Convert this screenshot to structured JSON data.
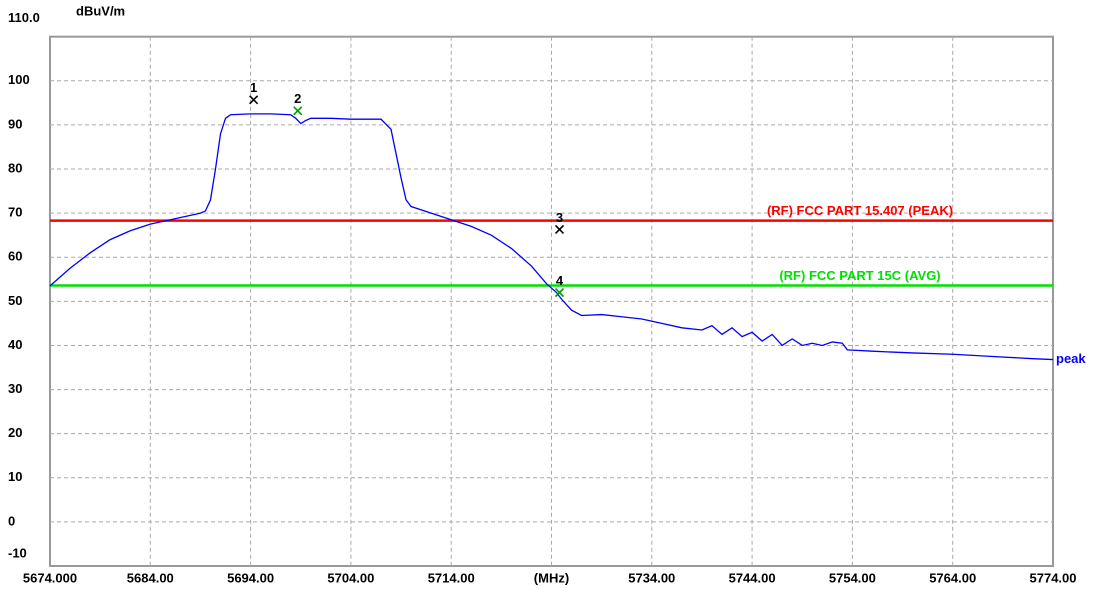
{
  "chart_data": {
    "type": "line",
    "y_label": "dBuV/m",
    "xlim": [
      5674,
      5774
    ],
    "ylim": [
      -10,
      110
    ],
    "xticks": [
      {
        "value": 5674,
        "label": "5674.000"
      },
      {
        "value": 5684,
        "label": "5684.00"
      },
      {
        "value": 5694,
        "label": "5694.00"
      },
      {
        "value": 5704,
        "label": "5704.00"
      },
      {
        "value": 5714,
        "label": "5714.00"
      },
      {
        "value": 5724,
        "label": "(MHz)"
      },
      {
        "value": 5734,
        "label": "5734.00"
      },
      {
        "value": 5744,
        "label": "5744.00"
      },
      {
        "value": 5754,
        "label": "5754.00"
      },
      {
        "value": 5764,
        "label": "5764.00"
      },
      {
        "value": 5774,
        "label": "5774.00"
      }
    ],
    "yticks": [
      -10,
      0,
      10,
      20,
      30,
      40,
      50,
      60,
      70,
      80,
      90,
      100,
      {
        "value": 110,
        "label": "110.0"
      }
    ],
    "grid": true,
    "x": [
      5674,
      5676,
      5678,
      5680,
      5682,
      5684,
      5686,
      5688,
      5689,
      5689.5,
      5690,
      5690.5,
      5691,
      5691.5,
      5692,
      5694,
      5696,
      5698,
      5698.5,
      5699,
      5699.5,
      5700,
      5702,
      5704,
      5707,
      5708,
      5709,
      5709.5,
      5710,
      5712,
      5714,
      5716,
      5718,
      5720,
      5722,
      5723.5,
      5724.5,
      5725,
      5726,
      5727,
      5729,
      5731,
      5733,
      5735,
      5737,
      5739,
      5740,
      5741,
      5742,
      5743,
      5744,
      5745,
      5746,
      5747,
      5748,
      5749,
      5750,
      5751,
      5752,
      5753,
      5753.5,
      5756,
      5760,
      5764,
      5768,
      5772,
      5774
    ],
    "series": [
      {
        "name": "peak",
        "color": "#0000ff",
        "values": [
          53.5,
          57.5,
          61,
          64,
          66,
          67.5,
          68.5,
          69.5,
          70,
          70.5,
          73,
          80,
          88,
          91.5,
          92.3,
          92.5,
          92.5,
          92.3,
          91.5,
          90.3,
          91,
          91.5,
          91.5,
          91.3,
          91.3,
          89,
          78,
          73,
          71.5,
          70,
          68.5,
          67,
          65,
          62,
          58,
          54,
          52,
          50.5,
          48,
          46.8,
          47,
          46.5,
          46,
          45,
          44,
          43.5,
          44.5,
          42.5,
          44,
          42,
          43,
          41,
          42.5,
          40,
          41.5,
          40,
          40.5,
          40,
          40.8,
          40.5,
          39,
          38.7,
          38.3,
          38,
          37.5,
          37,
          36.8
        ]
      }
    ],
    "limit_lines": [
      {
        "label": "(RF) FCC PART 15.407  (PEAK)",
        "value": 68.3,
        "color": "#ff0000"
      },
      {
        "label": "(RF) FCC PART 15C (AVG)",
        "value": 53.6,
        "color": "#00e000"
      }
    ],
    "markers": [
      {
        "label": "1",
        "x": 5694.3,
        "y": 95.7,
        "color": "#000000"
      },
      {
        "label": "2",
        "x": 5698.7,
        "y": 93.2,
        "color": "#009900"
      },
      {
        "label": "3",
        "x": 5724.8,
        "y": 66.3,
        "color": "#000000"
      },
      {
        "label": "4",
        "x": 5724.8,
        "y": 52,
        "color": "#009900"
      }
    ]
  }
}
